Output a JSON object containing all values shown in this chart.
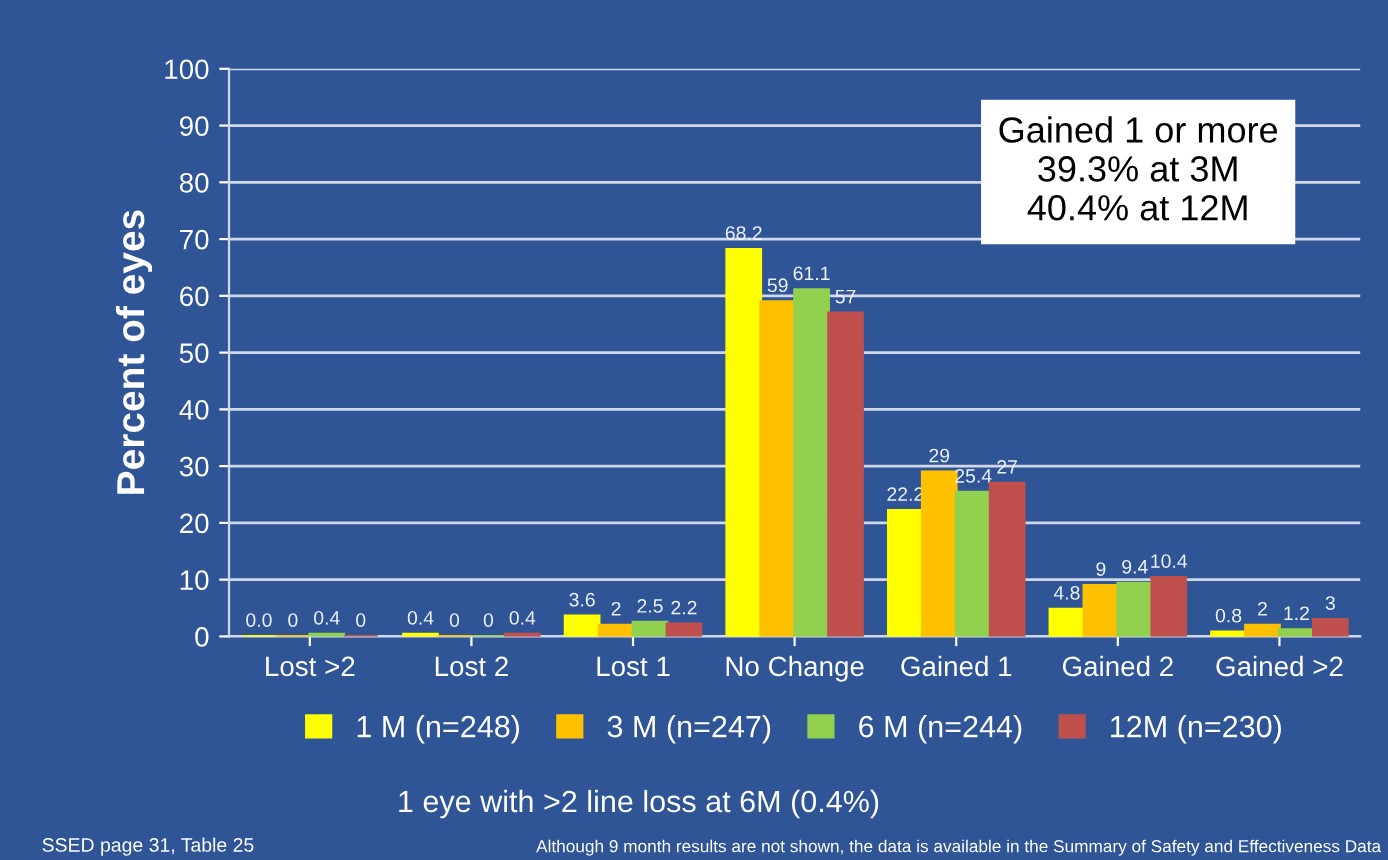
{
  "chart_data": {
    "type": "bar",
    "ylabel": "Percent of eyes",
    "categories": [
      "Lost >2",
      "Lost 2",
      "Lost 1",
      "No Change",
      "Gained 1",
      "Gained 2",
      "Gained >2"
    ],
    "series": [
      {
        "name": "1 M (n=248)",
        "color": "#ffff00",
        "values": [
          0.0,
          0.4,
          3.6,
          68.2,
          22.2,
          4.8,
          0.8
        ],
        "value_labels": [
          "0.0",
          "0.4",
          "3.6",
          "68.2",
          "22.2",
          "4.8",
          "0.8"
        ]
      },
      {
        "name": "3 M (n=247)",
        "color": "#ffc000",
        "values": [
          0,
          0,
          2,
          59,
          29,
          9,
          2
        ],
        "value_labels": [
          "0",
          "0",
          "2",
          "59",
          "29",
          "9",
          "2"
        ]
      },
      {
        "name": "6 M (n=244)",
        "color": "#92d050",
        "values": [
          0.4,
          0,
          2.5,
          61.1,
          25.4,
          9.4,
          1.2
        ],
        "value_labels": [
          "0.4",
          "0",
          "2.5",
          "61.1",
          "25.4",
          "9.4",
          "1.2"
        ]
      },
      {
        "name": "12M (n=230)",
        "color": "#c0504d",
        "values": [
          0,
          0.4,
          2.2,
          57,
          27,
          10.4,
          3
        ],
        "value_labels": [
          "0",
          "0.4",
          "2.2",
          "57",
          "27",
          "10.4",
          "3"
        ]
      }
    ],
    "ylim": [
      0,
      100
    ],
    "yticks": [
      0,
      10,
      20,
      30,
      40,
      50,
      60,
      70,
      80,
      90,
      100
    ],
    "grid": "y",
    "legend": "bottom",
    "annotations": [
      "Gained 1 or more\n39.3% at 3M\n40.4% at 12M",
      "1 eye with >2 line loss at 6M (0.4%)",
      "SSED page 31, Table 25",
      "Although 9 month results are not shown, the data is available in the Summary of Safety and Effectiveness Data"
    ]
  }
}
